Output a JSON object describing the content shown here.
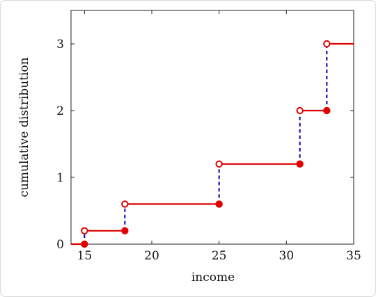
{
  "chart_data": {
    "type": "line",
    "subtype": "step-cdf",
    "xlabel": "income",
    "ylabel": "cumulative distribution",
    "xlim": [
      14,
      35
    ],
    "ylim": [
      0,
      3.5
    ],
    "xticks": [
      15,
      20,
      25,
      30,
      35
    ],
    "yticks": [
      0,
      1,
      2,
      3
    ],
    "grid": false,
    "series": [
      {
        "color": "#e00000",
        "jump_color": "#0000a8",
        "steps": [
          {
            "x": 15,
            "before": 0,
            "after": 0.2
          },
          {
            "x": 18,
            "before": 0.2,
            "after": 0.6
          },
          {
            "x": 25,
            "before": 0.6,
            "after": 1.2
          },
          {
            "x": 31,
            "before": 1.2,
            "after": 2.0
          },
          {
            "x": 33,
            "before": 2.0,
            "after": 3.0
          }
        ]
      }
    ]
  }
}
